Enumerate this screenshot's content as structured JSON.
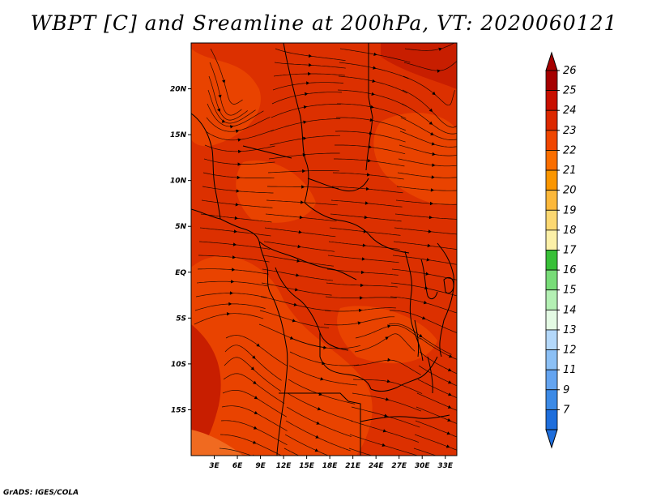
{
  "title": "WBPT [C] and Sreamline at 200hPa, VT: 2020060121",
  "footer": "GrADS: IGES/COLA",
  "axes": {
    "lat_labels": [
      "20N",
      "15N",
      "10N",
      "5N",
      "EQ",
      "5S",
      "10S",
      "15S"
    ],
    "lat_values": [
      20,
      15,
      10,
      5,
      0,
      -5,
      -10,
      -15
    ],
    "lon_labels": [
      "3E",
      "6E",
      "9E",
      "12E",
      "15E",
      "18E",
      "21E",
      "24E",
      "27E",
      "30E",
      "33E"
    ],
    "lon_values": [
      3,
      6,
      9,
      12,
      15,
      18,
      21,
      24,
      27,
      30,
      33
    ],
    "lat_range": [
      -20,
      25
    ],
    "lon_range": [
      0,
      34.5
    ]
  },
  "colorbar": {
    "labels": [
      "26",
      "25",
      "24",
      "23",
      "22",
      "21",
      "20",
      "19",
      "18",
      "17",
      "16",
      "15",
      "14",
      "13",
      "12",
      "11",
      "9",
      "7"
    ],
    "colors": [
      "#a50000",
      "#c80f00",
      "#dc2800",
      "#f04600",
      "#fa6e00",
      "#fa9600",
      "#fcb83a",
      "#fcd872",
      "#fcf0a8",
      "#38c038",
      "#78dc78",
      "#b4f0b4",
      "#e4fae4",
      "#b4d8fa",
      "#8cc0f5",
      "#64a4f0",
      "#3c8ae6",
      "#1e6edc"
    ]
  },
  "field_colors": {
    "dark": "#c81e00",
    "mid": "#dc3000",
    "light": "#eb4600"
  }
}
